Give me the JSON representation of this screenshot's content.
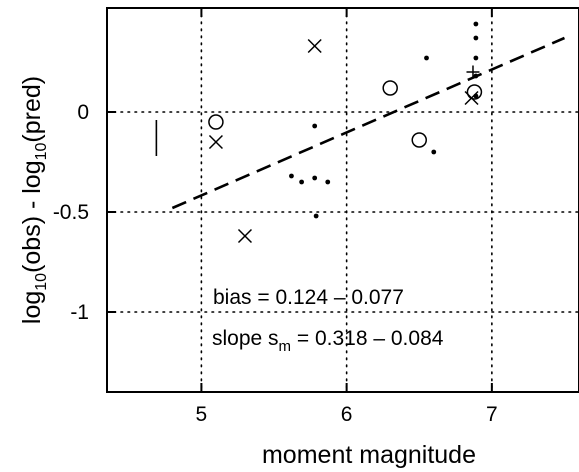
{
  "chart_data": {
    "type": "scatter",
    "xlabel": "moment magnitude",
    "ylabel_parts": [
      "log",
      "10",
      "(obs) - log",
      "10",
      "(pred)"
    ],
    "xlim": [
      4.35,
      7.6
    ],
    "ylim": [
      -1.4,
      0.52
    ],
    "x_ticks": [
      5,
      6,
      7
    ],
    "x_tick_labels": [
      "5",
      "6",
      "7"
    ],
    "y_ticks": [
      0,
      -0.5,
      -1
    ],
    "y_tick_labels": [
      "0",
      "-0.5",
      "-1"
    ],
    "grid": true,
    "series": [
      {
        "marker": "dot",
        "points": [
          [
            5.78,
            -0.07
          ],
          [
            5.62,
            -0.32
          ],
          [
            5.69,
            -0.35
          ],
          [
            5.78,
            -0.33
          ],
          [
            5.87,
            -0.35
          ],
          [
            5.79,
            -0.52
          ],
          [
            6.55,
            0.27
          ],
          [
            6.6,
            -0.2
          ],
          [
            6.89,
            0.44
          ],
          [
            6.89,
            0.37
          ],
          [
            6.89,
            0.27
          ],
          [
            6.89,
            0.18
          ],
          [
            6.89,
            0.08
          ]
        ]
      },
      {
        "marker": "x",
        "points": [
          [
            5.78,
            0.33
          ],
          [
            5.1,
            -0.15
          ],
          [
            5.3,
            -0.62
          ],
          [
            6.86,
            0.07
          ]
        ]
      },
      {
        "marker": "circle",
        "points": [
          [
            5.1,
            -0.05
          ],
          [
            6.3,
            0.12
          ],
          [
            6.5,
            -0.14
          ],
          [
            6.88,
            0.1
          ]
        ]
      },
      {
        "marker": "plus",
        "points": [
          [
            6.87,
            0.2
          ]
        ]
      }
    ],
    "fit_line": {
      "x": [
        4.8,
        7.5
      ],
      "y": [
        -0.48,
        0.37
      ]
    },
    "vertical_bar": {
      "x": 4.69,
      "y": [
        -0.22,
        -0.04
      ]
    },
    "annotations": {
      "bias": "bias = 0.124 – 0.077",
      "slope_prefix": "slope s",
      "slope_sub": "m",
      "slope_value": " = 0.318 – 0.084"
    }
  }
}
